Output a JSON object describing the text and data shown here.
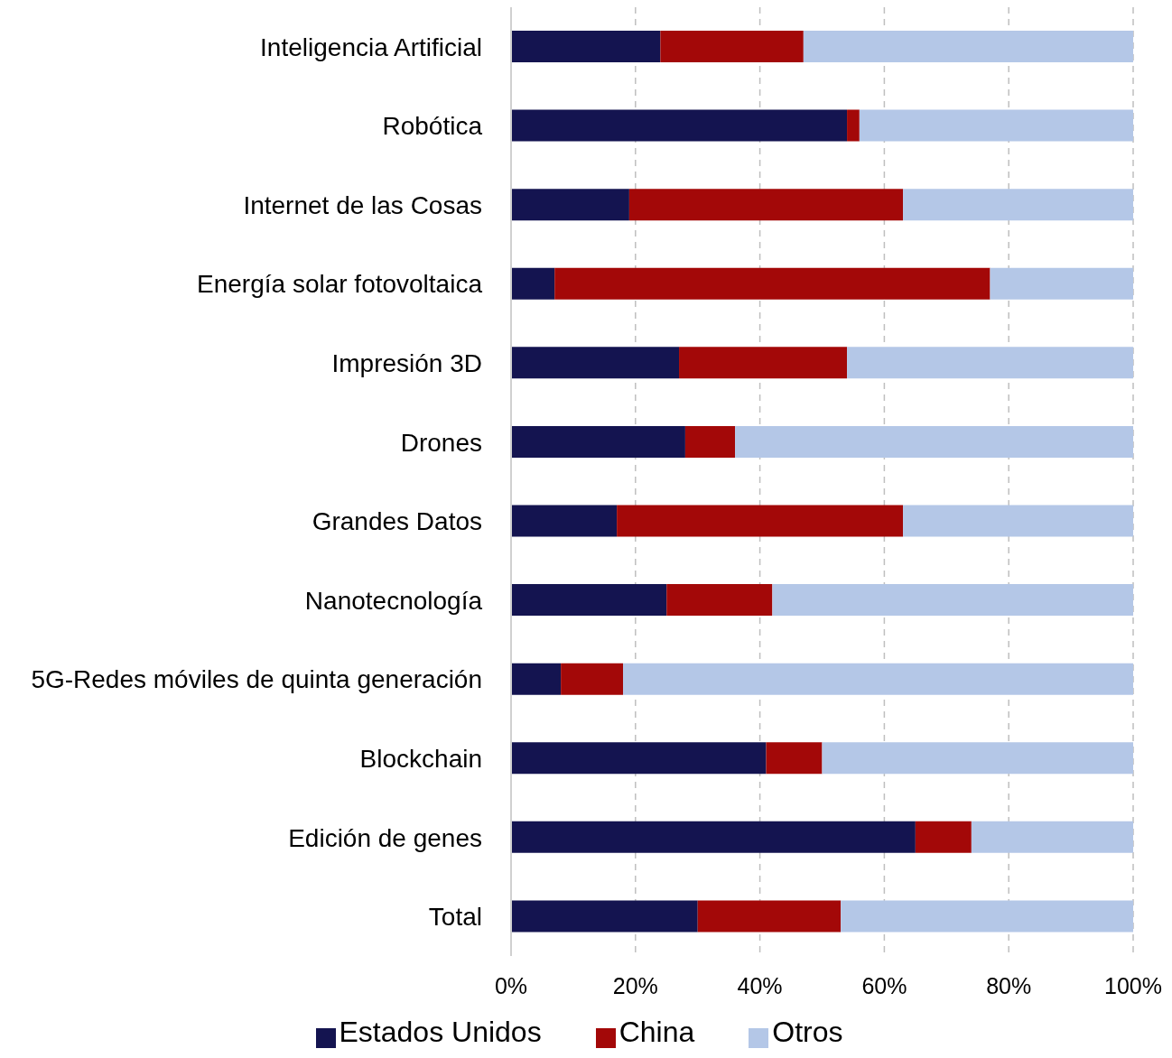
{
  "chart_data": {
    "type": "bar",
    "orientation": "horizontal",
    "stacked": true,
    "categories": [
      "Inteligencia Artificial",
      "Robótica",
      "Internet de las Cosas",
      "Energía solar fotovoltaica",
      "Impresión 3D",
      "Drones",
      "Grandes Datos",
      "Nanotecnología",
      "5G-Redes móviles de quinta generación",
      "Blockchain",
      "Edición de genes",
      "Total"
    ],
    "series": [
      {
        "name": "Estados Unidos",
        "color": "#141450",
        "values": [
          24,
          54,
          19,
          7,
          27,
          28,
          17,
          25,
          8,
          41,
          65,
          30
        ]
      },
      {
        "name": "China",
        "color": "#a30808",
        "values": [
          23,
          2,
          44,
          70,
          27,
          8,
          46,
          17,
          10,
          9,
          9,
          23
        ]
      },
      {
        "name": "Otros",
        "color": "#b4c7e7",
        "values": [
          53,
          44,
          37,
          23,
          46,
          64,
          37,
          58,
          82,
          50,
          26,
          47
        ]
      }
    ],
    "xlim": [
      0,
      100
    ],
    "xticks": [
      {
        "value": 0,
        "label": "0%"
      },
      {
        "value": 20,
        "label": "20%"
      },
      {
        "value": 40,
        "label": "40%"
      },
      {
        "value": 60,
        "label": "60%"
      },
      {
        "value": 80,
        "label": "80%"
      },
      {
        "value": 100,
        "label": "100%"
      }
    ],
    "grid": "x",
    "legend": "bottom"
  }
}
